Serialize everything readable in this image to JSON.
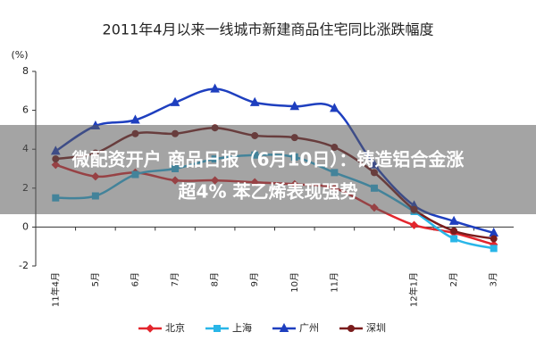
{
  "chart_data": {
    "type": "line",
    "title": "2011年4月以来一线城市新建商品住宅同比涨跌幅度",
    "y_unit": "(%)",
    "categories": [
      "11年4月",
      "5月",
      "6月",
      "7月",
      "8月",
      "9月",
      "10月",
      "11月",
      null,
      "12年1月",
      "2月",
      "3月"
    ],
    "series": [
      {
        "name": "北京",
        "color": "#e3262d",
        "marker": "diamond",
        "values": [
          3.2,
          2.6,
          2.8,
          2.4,
          2.4,
          2.3,
          2.2,
          2.0,
          1.0,
          0.1,
          -0.3,
          -0.9
        ]
      },
      {
        "name": "上海",
        "color": "#29b6e8",
        "marker": "square",
        "values": [
          1.5,
          1.6,
          2.7,
          3.0,
          3.5,
          3.7,
          3.6,
          2.8,
          2.0,
          0.8,
          -0.6,
          -1.1
        ]
      },
      {
        "name": "广州",
        "color": "#1e3fbf",
        "marker": "triangle",
        "values": [
          3.9,
          5.2,
          5.5,
          6.4,
          7.1,
          6.4,
          6.2,
          6.1,
          3.2,
          1.1,
          0.3,
          -0.3
        ]
      },
      {
        "name": "深圳",
        "color": "#7a1c1c",
        "marker": "circle",
        "values": [
          3.5,
          3.8,
          4.8,
          4.8,
          5.1,
          4.7,
          4.6,
          4.1,
          2.8,
          0.9,
          -0.2,
          -0.6
        ]
      }
    ],
    "ylim": [
      -2,
      8
    ],
    "yticks": [
      -2,
      0,
      2,
      4,
      6,
      8
    ],
    "grid": false
  },
  "overlay": {
    "lines": [
      "微配资开户 商品日报（6月10日）：铸造铝合金涨",
      "超4% 苯乙烯表现强势"
    ]
  }
}
